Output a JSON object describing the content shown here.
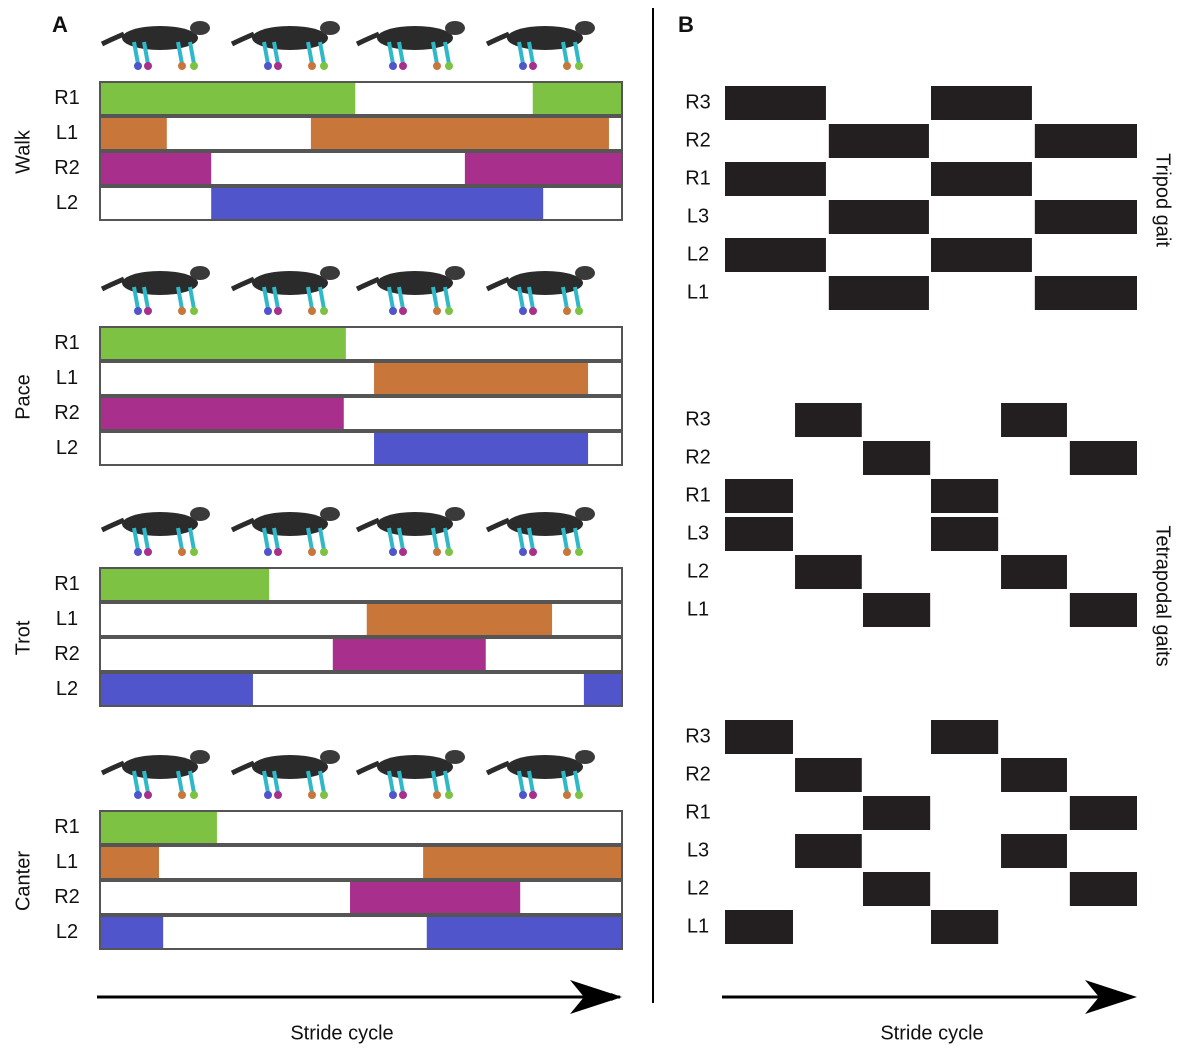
{
  "panel_a": {
    "label": "A",
    "x_label": "Stride cycle",
    "gaits": [
      {
        "name": "Walk",
        "legs": [
          {
            "label": "R1",
            "color": "#7dc242",
            "stance": [
              [
                0,
                0.489
              ],
              [
                0.829,
                1
              ]
            ]
          },
          {
            "label": "L1",
            "color": "#c8763a",
            "stance": [
              [
                0,
                0.128
              ],
              [
                0.404,
                0.975
              ]
            ]
          },
          {
            "label": "R2",
            "color": "#a8308c",
            "stance": [
              [
                0,
                0.213
              ],
              [
                0.699,
                1
              ]
            ]
          },
          {
            "label": "L2",
            "color": "#5055cc",
            "stance": [
              [
                0.213,
                0.849
              ]
            ]
          }
        ]
      },
      {
        "name": "Pace",
        "legs": [
          {
            "label": "R1",
            "color": "#7dc242",
            "stance": [
              [
                0,
                0.471
              ]
            ]
          },
          {
            "label": "L1",
            "color": "#c8763a",
            "stance": [
              [
                0.525,
                0.935
              ]
            ]
          },
          {
            "label": "R2",
            "color": "#a8308c",
            "stance": [
              [
                0,
                0.467
              ]
            ]
          },
          {
            "label": "L2",
            "color": "#5055cc",
            "stance": [
              [
                0.525,
                0.935
              ]
            ]
          }
        ]
      },
      {
        "name": "Trot",
        "legs": [
          {
            "label": "R1",
            "color": "#7dc242",
            "stance": [
              [
                0,
                0.324
              ]
            ]
          },
          {
            "label": "L1",
            "color": "#c8763a",
            "stance": [
              [
                0.511,
                0.866
              ]
            ]
          },
          {
            "label": "R2",
            "color": "#a8308c",
            "stance": [
              [
                0.446,
                0.739
              ]
            ]
          },
          {
            "label": "L2",
            "color": "#5055cc",
            "stance": [
              [
                0,
                0.293
              ],
              [
                0.927,
                1
              ]
            ]
          }
        ]
      },
      {
        "name": "Canter",
        "legs": [
          {
            "label": "R1",
            "color": "#7dc242",
            "stance": [
              [
                0,
                0.224
              ]
            ]
          },
          {
            "label": "L1",
            "color": "#c8763a",
            "stance": [
              [
                0,
                0.113
              ],
              [
                0.619,
                1
              ]
            ]
          },
          {
            "label": "R2",
            "color": "#a8308c",
            "stance": [
              [
                0.479,
                0.805
              ]
            ]
          },
          {
            "label": "L2",
            "color": "#5055cc",
            "stance": [
              [
                0,
                0.121
              ],
              [
                0.626,
                1
              ]
            ]
          }
        ]
      }
    ]
  },
  "panel_b": {
    "label": "B",
    "x_label": "Stride cycle",
    "color": "#231f20",
    "group_labels": [
      "Tripod gait",
      "Tetrapodal gaits"
    ],
    "diagrams": [
      {
        "legs": [
          {
            "label": "R3",
            "stance": [
              [
                0,
                0.245
              ],
              [
                0.5,
                0.745
              ]
            ]
          },
          {
            "label": "R2",
            "stance": [
              [
                0.252,
                0.495
              ],
              [
                0.752,
                1
              ]
            ]
          },
          {
            "label": "R1",
            "stance": [
              [
                0,
                0.245
              ],
              [
                0.5,
                0.745
              ]
            ]
          },
          {
            "label": "L3",
            "stance": [
              [
                0.252,
                0.495
              ],
              [
                0.752,
                1
              ]
            ]
          },
          {
            "label": "L2",
            "stance": [
              [
                0,
                0.245
              ],
              [
                0.5,
                0.745
              ]
            ]
          },
          {
            "label": "L1",
            "stance": [
              [
                0.252,
                0.495
              ],
              [
                0.752,
                1
              ]
            ]
          }
        ]
      },
      {
        "legs": [
          {
            "label": "R3",
            "stance": [
              [
                0.17,
                0.332
              ],
              [
                0.67,
                0.83
              ]
            ]
          },
          {
            "label": "R2",
            "stance": [
              [
                0.335,
                0.498
              ],
              [
                0.837,
                1
              ]
            ]
          },
          {
            "label": "R1",
            "stance": [
              [
                0,
                0.165
              ],
              [
                0.5,
                0.663
              ]
            ]
          },
          {
            "label": "L3",
            "stance": [
              [
                0,
                0.165
              ],
              [
                0.5,
                0.663
              ]
            ]
          },
          {
            "label": "L2",
            "stance": [
              [
                0.17,
                0.332
              ],
              [
                0.67,
                0.83
              ]
            ]
          },
          {
            "label": "L1",
            "stance": [
              [
                0.335,
                0.498
              ],
              [
                0.837,
                1
              ]
            ]
          }
        ]
      },
      {
        "legs": [
          {
            "label": "R3",
            "stance": [
              [
                0,
                0.165
              ],
              [
                0.5,
                0.663
              ]
            ]
          },
          {
            "label": "R2",
            "stance": [
              [
                0.17,
                0.332
              ],
              [
                0.67,
                0.83
              ]
            ]
          },
          {
            "label": "R1",
            "stance": [
              [
                0.335,
                0.498
              ],
              [
                0.837,
                1
              ]
            ]
          },
          {
            "label": "L3",
            "stance": [
              [
                0.17,
                0.332
              ],
              [
                0.67,
                0.83
              ]
            ]
          },
          {
            "label": "L2",
            "stance": [
              [
                0.335,
                0.498
              ],
              [
                0.837,
                1
              ]
            ]
          },
          {
            "label": "L1",
            "stance": [
              [
                0,
                0.165
              ],
              [
                0.5,
                0.663
              ]
            ]
          }
        ]
      }
    ]
  }
}
